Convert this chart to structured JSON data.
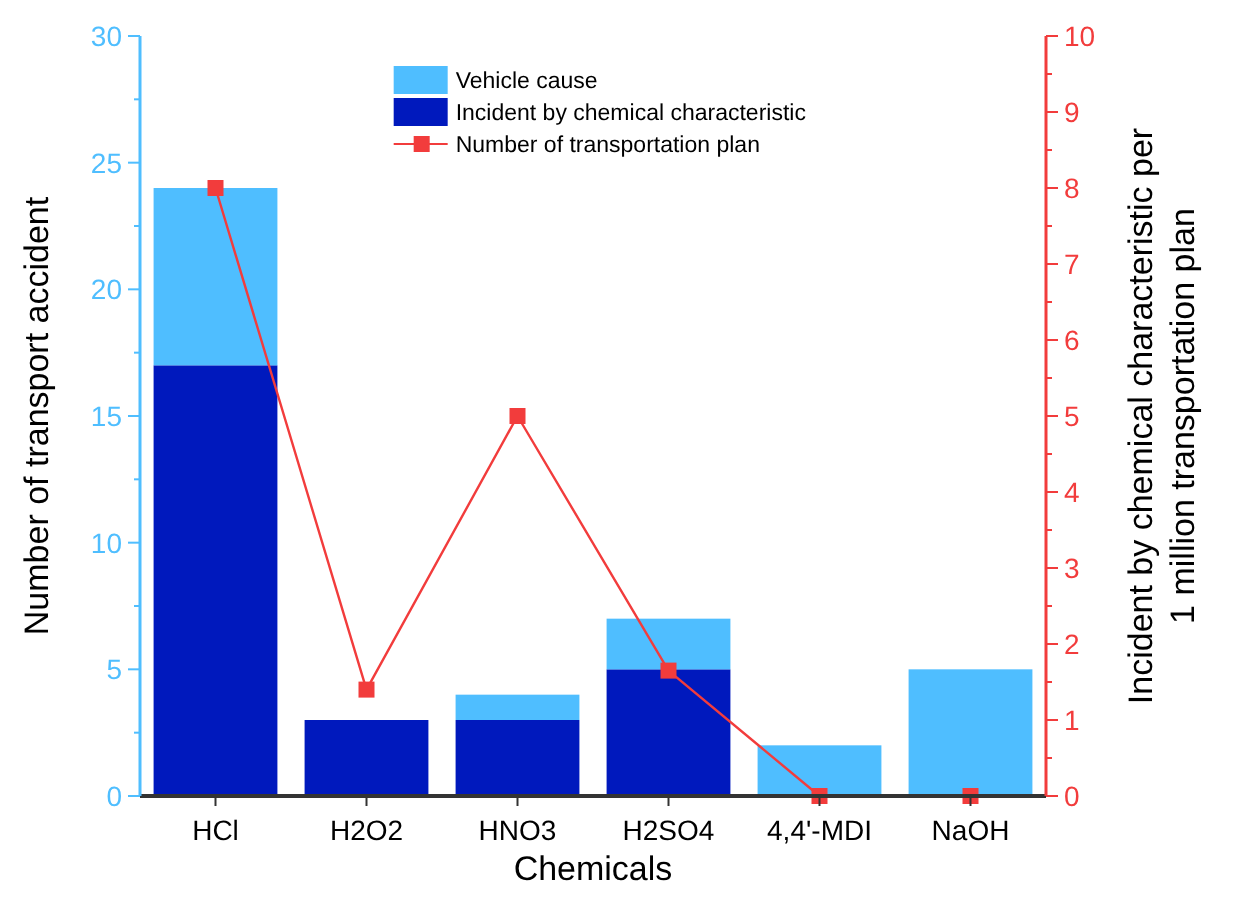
{
  "chart_data": {
    "type": "bar",
    "stacked": true,
    "xlabel": "Chemicals",
    "ylabel": "Number of transport accident",
    "y2label": "Incident by chemical characteristic per 1 million transportation plan",
    "categories": [
      "HCl",
      "H2O2",
      "HNO3",
      "H2SO4",
      "4,4'-MDI",
      "NaOH"
    ],
    "series": [
      {
        "name": "Incident by chemical characteristic",
        "color": "#0019bd",
        "values": [
          17,
          3,
          3,
          5,
          0,
          0
        ]
      },
      {
        "name": "Vehicle cause",
        "color": "#4fbeff",
        "values": [
          7,
          0,
          1,
          2,
          2,
          5
        ]
      },
      {
        "name": "Number of transportation plan",
        "type": "line",
        "axis": "y2",
        "color": "#f23c3c",
        "marker": "square",
        "values": [
          8.0,
          1.4,
          5.0,
          1.65,
          0,
          0
        ]
      }
    ],
    "ylim": [
      0,
      30
    ],
    "yticks": [
      0,
      {
        "value": 2.5,
        "label": null
      },
      5,
      {
        "value": 7.5,
        "label": null
      },
      10,
      {
        "value": 12.5,
        "label": null
      },
      15,
      {
        "value": 17.5,
        "label": null
      },
      20,
      {
        "value": 22.5,
        "label": null
      },
      25,
      {
        "value": 27.5,
        "label": null
      },
      30
    ],
    "y2lim": [
      0,
      10
    ],
    "y2ticks": [
      0,
      {
        "value": 0.5,
        "label": null
      },
      1,
      {
        "value": 1.5,
        "label": null
      },
      2,
      {
        "value": 2.5,
        "label": null
      },
      3,
      {
        "value": 3.5,
        "label": null
      },
      4,
      {
        "value": 4.5,
        "label": null
      },
      5,
      {
        "value": 5.5,
        "label": null
      },
      6,
      {
        "value": 6.5,
        "label": null
      },
      7,
      {
        "value": 7.5,
        "label": null
      },
      8,
      {
        "value": 8.5,
        "label": null
      },
      9,
      {
        "value": 9.5,
        "label": null
      },
      10
    ],
    "grid": false,
    "legend": "top"
  }
}
